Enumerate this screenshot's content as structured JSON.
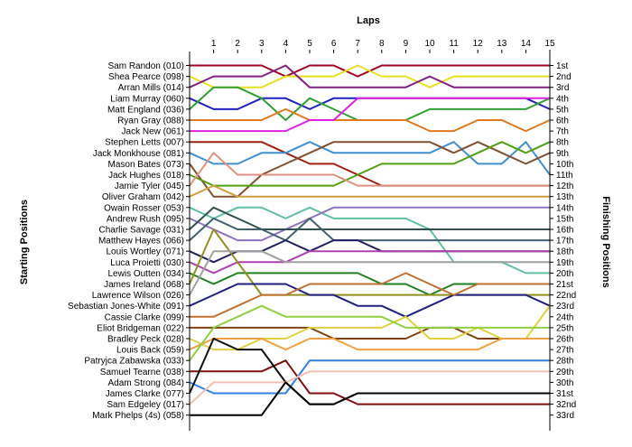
{
  "chart_data": {
    "type": "line",
    "title": "",
    "xlabel": "Laps",
    "ylabel_left": "Starting Positions",
    "ylabel_right": "Finishing Positions",
    "laps": [
      1,
      2,
      3,
      4,
      5,
      6,
      7,
      8,
      9,
      10,
      11,
      12,
      13,
      14,
      15
    ],
    "starting_labels": [
      "Sam Randon (010)",
      "Shea Pearce (098)",
      "Arran Mills (014)",
      "Liam Murray (060)",
      "Matt England (036)",
      "Ryan Gray (088)",
      "Jack New (061)",
      "Stephen Letts (007)",
      "Jack Monkhouse (081)",
      "Mason Bates (073)",
      "Jack Hughes (018)",
      "Jamie Tyler (045)",
      "Oliver Graham (042)",
      "Owain Rosser (053)",
      "Andrew Rush (095)",
      "Charlie Savage (031)",
      "Matthew Hayes (066)",
      "Louis Wortley (071)",
      "Luca Proietti (030)",
      "Lewis Outten (034)",
      "James Ireland (068)",
      "Lawrence Wilson (026)",
      "Sebastian Jones-White (091)",
      "Cassie Clarke (099)",
      "Eliot Bridgeman (022)",
      "Bradley Peck (028)",
      "Louis Back (059)",
      "Patryjca Zabawska (033)",
      "Samuel Tearne (038)",
      "Adam Strong (084)",
      "James Clarke (077)",
      "Sam Edgeley (017)",
      "Mark Phelps (4s) (058)"
    ],
    "finishing_labels": [
      "1st",
      "2nd",
      "3rd",
      "4th",
      "5th",
      "6th",
      "7th",
      "8th",
      "9th",
      "10th",
      "11th",
      "12th",
      "13th",
      "14th",
      "15th",
      "16th",
      "17th",
      "18th",
      "19th",
      "20th",
      "21st",
      "22nd",
      "23rd",
      "24th",
      "25th",
      "26th",
      "27th",
      "28th",
      "29th",
      "30th",
      "31st",
      "32nd",
      "33rd"
    ],
    "series": [
      {
        "color": "#a00020",
        "positions": [
          1,
          1,
          1,
          1,
          2,
          1,
          1,
          2,
          1,
          1,
          1,
          1,
          1,
          1,
          1,
          1
        ]
      },
      {
        "color": "#e8e020",
        "positions": [
          2,
          3,
          3,
          3,
          2,
          2,
          2,
          1,
          2,
          2,
          3,
          2,
          2,
          2,
          2,
          2
        ]
      },
      {
        "color": "#802080",
        "positions": [
          3,
          2,
          2,
          2,
          1,
          3,
          3,
          3,
          3,
          3,
          2,
          3,
          3,
          3,
          3,
          3
        ]
      },
      {
        "color": "#2020c0",
        "positions": [
          4,
          5,
          5,
          4,
          4,
          5,
          4,
          4,
          4,
          4,
          4,
          4,
          4,
          4,
          4,
          5
        ]
      },
      {
        "color": "#30a030",
        "positions": [
          5,
          3,
          3,
          4,
          6,
          4,
          5,
          6,
          6,
          6,
          5,
          5,
          5,
          5,
          5,
          4
        ]
      },
      {
        "color": "#e07820",
        "positions": [
          6,
          6,
          6,
          6,
          5,
          6,
          6,
          6,
          6,
          6,
          7,
          7,
          6,
          6,
          7,
          6
        ]
      },
      {
        "color": "#e020e0",
        "positions": [
          7,
          7,
          7,
          7,
          7,
          6,
          6,
          4,
          4,
          4,
          4,
          4,
          4,
          4,
          4,
          4
        ]
      },
      {
        "color": "#a02010",
        "positions": [
          8,
          8,
          8,
          8,
          9,
          10,
          10,
          11,
          12,
          12,
          12,
          12,
          12,
          12,
          12,
          12
        ]
      },
      {
        "color": "#4090d0",
        "positions": [
          9,
          10,
          10,
          9,
          9,
          8,
          9,
          9,
          9,
          9,
          9,
          8,
          10,
          10,
          8,
          11
        ]
      },
      {
        "color": "#805030",
        "positions": [
          10,
          13,
          13,
          11,
          10,
          9,
          8,
          8,
          8,
          8,
          8,
          9,
          8,
          9,
          10,
          9
        ]
      },
      {
        "color": "#50a010",
        "positions": [
          11,
          12,
          12,
          12,
          12,
          12,
          12,
          11,
          10,
          10,
          10,
          10,
          9,
          8,
          9,
          8
        ]
      },
      {
        "color": "#e09080",
        "positions": [
          12,
          9,
          11,
          11,
          11,
          11,
          11,
          12,
          12,
          12,
          12,
          12,
          12,
          12,
          12,
          12
        ]
      },
      {
        "color": "#d0a040",
        "positions": [
          13,
          12,
          13,
          13,
          13,
          13,
          13,
          13,
          13,
          13,
          13,
          13,
          13,
          13,
          13,
          13
        ]
      },
      {
        "color": "#60c0a0",
        "positions": [
          14,
          15,
          14,
          14,
          15,
          14,
          15,
          15,
          15,
          15,
          16,
          19,
          19,
          19,
          20,
          20
        ]
      },
      {
        "color": "#9070c0",
        "positions": [
          15,
          16,
          17,
          17,
          16,
          15,
          14,
          14,
          14,
          14,
          14,
          14,
          14,
          14,
          14,
          14
        ]
      },
      {
        "color": "#305050",
        "positions": [
          16,
          14,
          15,
          16,
          16,
          16,
          16,
          16,
          16,
          16,
          16,
          16,
          16,
          16,
          16,
          16
        ]
      },
      {
        "color": "#406070",
        "positions": [
          17,
          15,
          16,
          16,
          17,
          15,
          17,
          17,
          17,
          17,
          17,
          17,
          17,
          17,
          17,
          17
        ]
      },
      {
        "color": "#202060",
        "positions": [
          18,
          19,
          18,
          18,
          17,
          18,
          17,
          17,
          18,
          18,
          18,
          18,
          18,
          18,
          18,
          18
        ]
      },
      {
        "color": "#b040b0",
        "positions": [
          19,
          20,
          19,
          19,
          19,
          18,
          18,
          18,
          18,
          18,
          18,
          18,
          18,
          18,
          18,
          18
        ]
      },
      {
        "color": "#208020",
        "positions": [
          20,
          21,
          20,
          20,
          20,
          20,
          20,
          20,
          21,
          21,
          22,
          21,
          21,
          21,
          21,
          21
        ]
      },
      {
        "color": "#909020",
        "positions": [
          21,
          16,
          19,
          22,
          22,
          22,
          22,
          22,
          22,
          22,
          22,
          22,
          22,
          22,
          22,
          22
        ]
      },
      {
        "color": "#a0a0a0",
        "positions": [
          22,
          18,
          18,
          18,
          19,
          19,
          19,
          19,
          19,
          19,
          19,
          19,
          19,
          19,
          19,
          19
        ]
      },
      {
        "color": "#202080",
        "positions": [
          23,
          22,
          21,
          21,
          21,
          22,
          22,
          23,
          23,
          24,
          23,
          22,
          22,
          22,
          22,
          23
        ]
      },
      {
        "color": "#c07030",
        "positions": [
          24,
          24,
          23,
          22,
          22,
          21,
          21,
          21,
          21,
          20,
          21,
          22,
          21,
          21,
          21,
          21
        ]
      },
      {
        "color": "#804010",
        "positions": [
          25,
          25,
          25,
          25,
          25,
          25,
          26,
          26,
          26,
          26,
          25,
          25,
          26,
          26,
          26,
          26
        ]
      },
      {
        "color": "#e0d040",
        "positions": [
          26,
          27,
          27,
          26,
          26,
          25,
          25,
          25,
          25,
          24,
          26,
          26,
          25,
          26,
          26,
          23
        ]
      },
      {
        "color": "#f0a040",
        "positions": [
          27,
          26,
          26,
          26,
          27,
          26,
          26,
          27,
          27,
          27,
          27,
          27,
          27,
          26,
          26,
          26
        ]
      },
      {
        "color": "#90d040",
        "positions": [
          28,
          25,
          24,
          23,
          24,
          24,
          24,
          24,
          24,
          25,
          25,
          25,
          25,
          25,
          25,
          25
        ]
      },
      {
        "color": "#801010",
        "positions": [
          29,
          29,
          29,
          29,
          28,
          31,
          31,
          32,
          32,
          32,
          32,
          32,
          32,
          32,
          32,
          32
        ]
      },
      {
        "color": "#3080e0",
        "positions": [
          30,
          31,
          31,
          31,
          31,
          28,
          28,
          28,
          28,
          28,
          28,
          28,
          28,
          28,
          28,
          28
        ]
      },
      {
        "color": "#101010",
        "positions": [
          31,
          26,
          27,
          27,
          30,
          32,
          32,
          31,
          31,
          31,
          31,
          31,
          31,
          31,
          31,
          31
        ]
      },
      {
        "color": "#f0c0b0",
        "positions": [
          32,
          30,
          30,
          30,
          30,
          29,
          29,
          29,
          29,
          29,
          29,
          29,
          29,
          29,
          29,
          29
        ]
      },
      {
        "color": "#000000",
        "positions": [
          33,
          33,
          33,
          33,
          30,
          32,
          32,
          31,
          31,
          31,
          31,
          31,
          31,
          31,
          31,
          31
        ]
      }
    ]
  }
}
